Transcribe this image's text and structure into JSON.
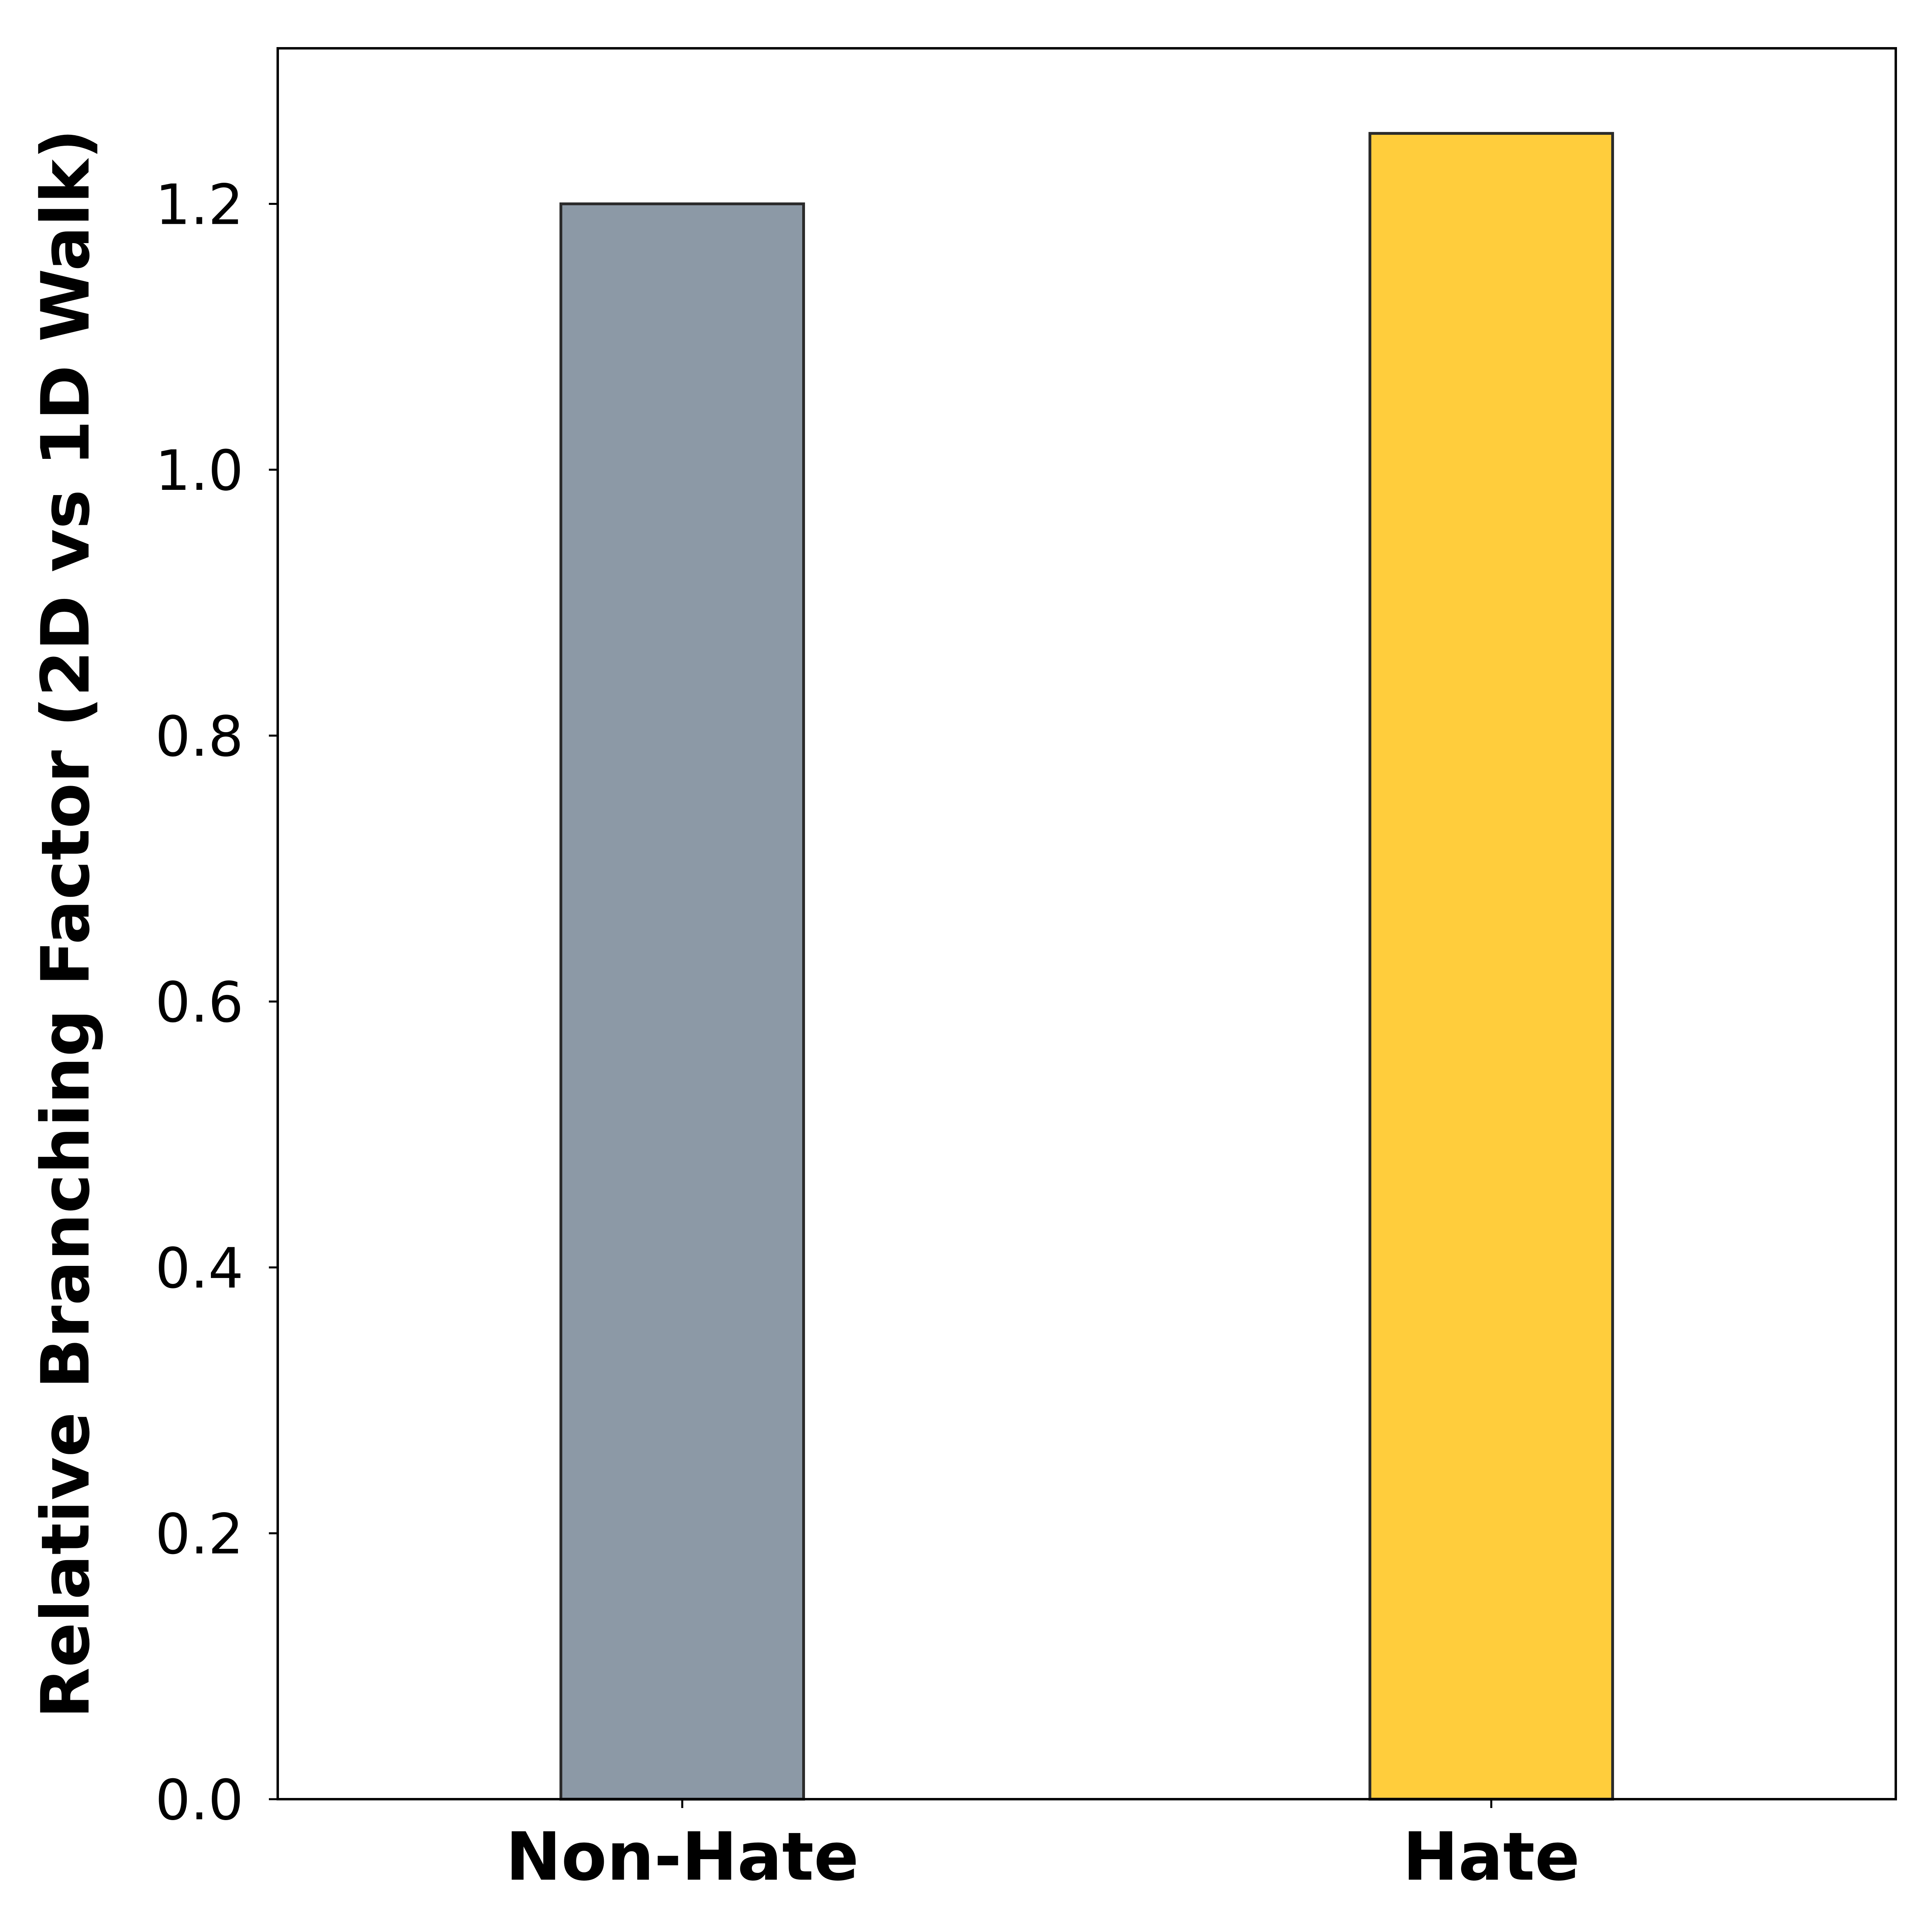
{
  "chart_data": {
    "type": "bar",
    "categories": [
      "Non-Hate",
      "Hate"
    ],
    "values": [
      1.2,
      1.253
    ],
    "colors": [
      "#8c99a6",
      "#ffcd3c"
    ],
    "edge_color": "#2b2b2b",
    "ylabel": "Relative Branching Factor  (2D vs 1D Walk)",
    "ylim": [
      0,
      1.317
    ],
    "yticks": [
      0.0,
      0.2,
      0.4,
      0.6,
      0.8,
      1.0,
      1.2
    ],
    "ytick_labels": [
      "0.0",
      "0.2",
      "0.4",
      "0.6",
      "0.8",
      "1.0",
      "1.2"
    ],
    "grid": false,
    "legend": "none"
  }
}
